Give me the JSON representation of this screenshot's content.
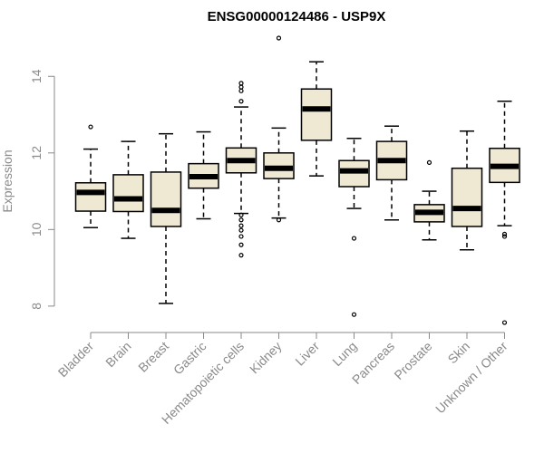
{
  "chart_data": {
    "type": "boxplot",
    "title": "ENSG00000124486 - USP9X",
    "ylabel": "Expression",
    "ylim": [
      7.5,
      15.0
    ],
    "yticks": [
      8,
      10,
      12,
      14
    ],
    "box_fill": "#efe8d2",
    "categories": [
      "Bladder",
      "Brain",
      "Breast",
      "Gastric",
      "Hematopoietic cells",
      "Kidney",
      "Liver",
      "Lung",
      "Pancreas",
      "Prostate",
      "Skin",
      "Unknown / Other"
    ],
    "boxes": [
      {
        "category": "Bladder",
        "whisker_low": 10.05,
        "q1": 10.48,
        "median": 10.97,
        "q3": 11.22,
        "whisker_high": 12.1,
        "outliers": [
          12.68
        ]
      },
      {
        "category": "Brain",
        "whisker_low": 9.77,
        "q1": 10.47,
        "median": 10.8,
        "q3": 11.43,
        "whisker_high": 12.3,
        "outliers": []
      },
      {
        "category": "Breast",
        "whisker_low": 8.07,
        "q1": 10.08,
        "median": 10.5,
        "q3": 11.5,
        "whisker_high": 12.5,
        "outliers": []
      },
      {
        "category": "Gastric",
        "whisker_low": 10.28,
        "q1": 11.08,
        "median": 11.38,
        "q3": 11.72,
        "whisker_high": 12.55,
        "outliers": []
      },
      {
        "category": "Hematopoietic cells",
        "whisker_low": 10.42,
        "q1": 11.48,
        "median": 11.8,
        "q3": 12.13,
        "whisker_high": 13.2,
        "outliers": [
          9.33,
          9.6,
          9.82,
          9.98,
          10.1,
          10.25,
          10.38,
          13.35,
          13.62,
          13.72,
          13.82
        ]
      },
      {
        "category": "Kidney",
        "whisker_low": 10.3,
        "q1": 11.33,
        "median": 11.6,
        "q3": 12.0,
        "whisker_high": 12.65,
        "outliers": [
          10.25,
          15.0
        ]
      },
      {
        "category": "Liver",
        "whisker_low": 11.4,
        "q1": 12.33,
        "median": 13.15,
        "q3": 13.67,
        "whisker_high": 14.38,
        "outliers": []
      },
      {
        "category": "Lung",
        "whisker_low": 10.55,
        "q1": 11.12,
        "median": 11.53,
        "q3": 11.8,
        "whisker_high": 12.38,
        "outliers": [
          9.77,
          7.78
        ]
      },
      {
        "category": "Pancreas",
        "whisker_low": 10.25,
        "q1": 11.3,
        "median": 11.8,
        "q3": 12.3,
        "whisker_high": 12.7,
        "outliers": []
      },
      {
        "category": "Prostate",
        "whisker_low": 9.73,
        "q1": 10.2,
        "median": 10.45,
        "q3": 10.65,
        "whisker_high": 11.0,
        "outliers": [
          11.75
        ]
      },
      {
        "category": "Skin",
        "whisker_low": 9.47,
        "q1": 10.08,
        "median": 10.55,
        "q3": 11.6,
        "whisker_high": 12.57,
        "outliers": []
      },
      {
        "category": "Unknown / Other",
        "whisker_low": 10.1,
        "q1": 11.23,
        "median": 11.65,
        "q3": 12.12,
        "whisker_high": 13.35,
        "outliers": [
          9.82,
          9.88,
          7.57
        ]
      }
    ]
  }
}
